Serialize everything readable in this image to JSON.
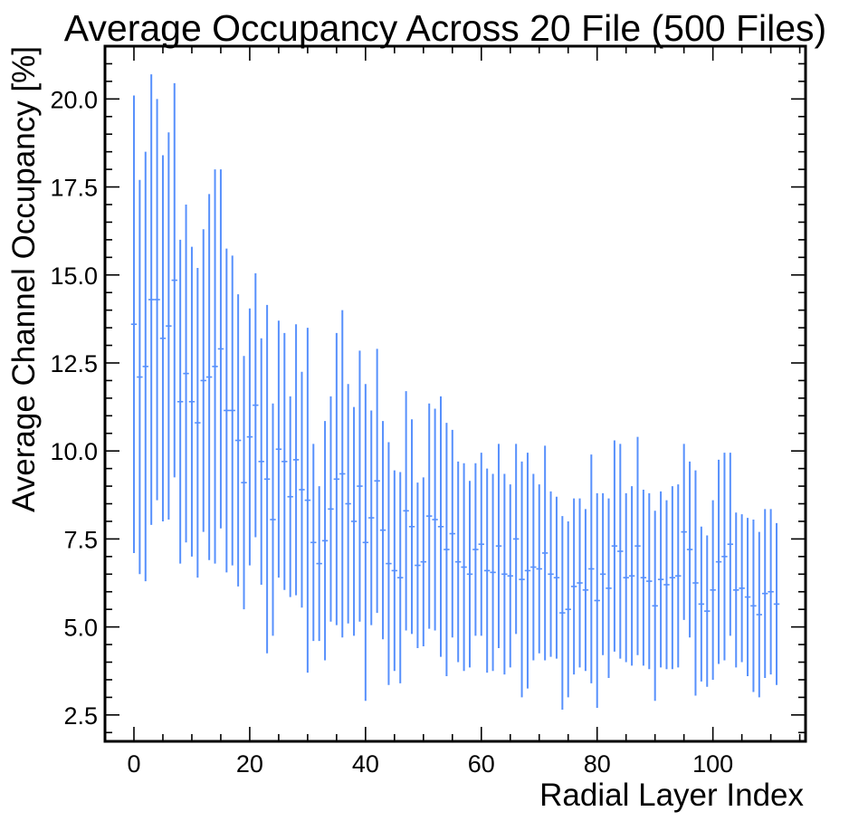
{
  "chart_data": {
    "type": "scatter",
    "style": "errorbar",
    "title": "Average Occupancy Across 20 File (500 Files)",
    "xlabel": "Radial Layer Index",
    "ylabel": "Average Channel Occupancy [%]",
    "xlim": [
      -5,
      116
    ],
    "ylim": [
      1.75,
      21.5
    ],
    "xticks": [
      0,
      20,
      40,
      60,
      80,
      100
    ],
    "xtick_labels": [
      "0",
      "20",
      "40",
      "60",
      "80",
      "100"
    ],
    "yticks": [
      2.5,
      5.0,
      7.5,
      10.0,
      12.5,
      15.0,
      17.5,
      20.0
    ],
    "ytick_labels": [
      "2.5",
      "5.0",
      "7.5",
      "10.0",
      "12.5",
      "15.0",
      "17.5",
      "20.0"
    ],
    "grid": false,
    "color": "#5790fc",
    "series": [
      {
        "x": [
          0,
          1,
          2,
          3,
          4,
          5,
          6,
          7,
          8,
          9,
          10,
          11,
          12,
          13,
          14,
          15,
          16,
          17,
          18,
          19,
          20,
          21,
          22,
          23,
          24,
          25,
          26,
          27,
          28,
          29,
          30,
          31,
          32,
          33,
          34,
          35,
          36,
          37,
          38,
          39,
          40,
          41,
          42,
          43,
          44,
          45,
          46,
          47,
          48,
          49,
          50,
          51,
          52,
          53,
          54,
          55,
          56,
          57,
          58,
          59,
          60,
          61,
          62,
          63,
          64,
          65,
          66,
          67,
          68,
          69,
          70,
          71,
          72,
          73,
          74,
          75,
          76,
          77,
          78,
          79,
          80,
          81,
          82,
          83,
          84,
          85,
          86,
          87,
          88,
          89,
          90,
          91,
          92,
          93,
          94,
          95,
          96,
          97,
          98,
          99,
          100,
          101,
          102,
          103,
          104,
          105,
          106,
          107,
          108,
          109,
          110,
          111
        ],
        "y": [
          13.6,
          12.1,
          12.4,
          14.3,
          14.3,
          13.2,
          13.55,
          14.85,
          11.4,
          12.2,
          11.4,
          10.8,
          12.0,
          12.1,
          12.4,
          12.9,
          11.15,
          11.15,
          10.3,
          9.1,
          10.4,
          11.3,
          9.7,
          9.2,
          8.05,
          10.05,
          9.7,
          8.7,
          9.75,
          8.9,
          8.6,
          7.4,
          6.8,
          7.45,
          8.35,
          9.2,
          9.35,
          8.5,
          8.0,
          9.0,
          7.4,
          8.1,
          9.15,
          7.75,
          6.8,
          6.6,
          6.4,
          8.3,
          7.85,
          6.75,
          6.85,
          8.15,
          8.05,
          7.85,
          7.2,
          7.65,
          6.85,
          6.7,
          6.5,
          7.2,
          7.35,
          6.6,
          6.55,
          7.3,
          6.5,
          6.45,
          7.5,
          6.35,
          6.6,
          6.7,
          6.65,
          7.1,
          6.5,
          6.4,
          5.4,
          5.5,
          6.15,
          6.25,
          6.05,
          6.65,
          5.75,
          6.5,
          6.1,
          7.3,
          7.15,
          6.4,
          6.45,
          7.3,
          6.4,
          6.3,
          5.6,
          6.35,
          6.2,
          6.4,
          6.45,
          7.7,
          7.2,
          6.25,
          5.65,
          5.45,
          6.05,
          6.85,
          7.0,
          7.35,
          6.05,
          6.1,
          5.85,
          5.6,
          5.35,
          5.95,
          6.0,
          5.65
        ],
        "yerr": [
          6.5,
          5.6,
          6.1,
          6.4,
          5.7,
          5.2,
          5.5,
          5.6,
          4.6,
          4.8,
          4.4,
          4.4,
          4.3,
          5.2,
          5.6,
          5.1,
          4.6,
          4.4,
          4.15,
          3.6,
          3.65,
          3.75,
          3.5,
          4.95,
          3.3,
          3.65,
          3.65,
          2.85,
          3.85,
          3.35,
          4.9,
          2.8,
          2.2,
          3.4,
          3.2,
          4.15,
          4.65,
          3.4,
          3.25,
          3.85,
          4.5,
          3.05,
          3.75,
          3.1,
          3.45,
          2.85,
          3.0,
          3.4,
          3.05,
          2.35,
          2.4,
          3.2,
          3.15,
          3.7,
          3.6,
          2.95,
          2.85,
          2.95,
          2.65,
          2.45,
          2.6,
          2.9,
          2.8,
          2.9,
          2.85,
          2.6,
          2.7,
          3.35,
          3.35,
          2.65,
          2.4,
          3.05,
          2.35,
          2.3,
          2.75,
          2.5,
          2.5,
          2.4,
          2.3,
          3.25,
          3.05,
          2.3,
          2.55,
          3.0,
          3.05,
          2.4,
          2.55,
          3.1,
          2.5,
          2.5,
          2.7,
          2.5,
          2.4,
          2.6,
          2.6,
          2.5,
          2.5,
          3.2,
          2.2,
          2.15,
          2.55,
          2.9,
          2.95,
          2.6,
          2.2,
          2.1,
          2.25,
          2.45,
          2.35,
          2.4,
          2.35,
          2.3
        ]
      }
    ]
  }
}
